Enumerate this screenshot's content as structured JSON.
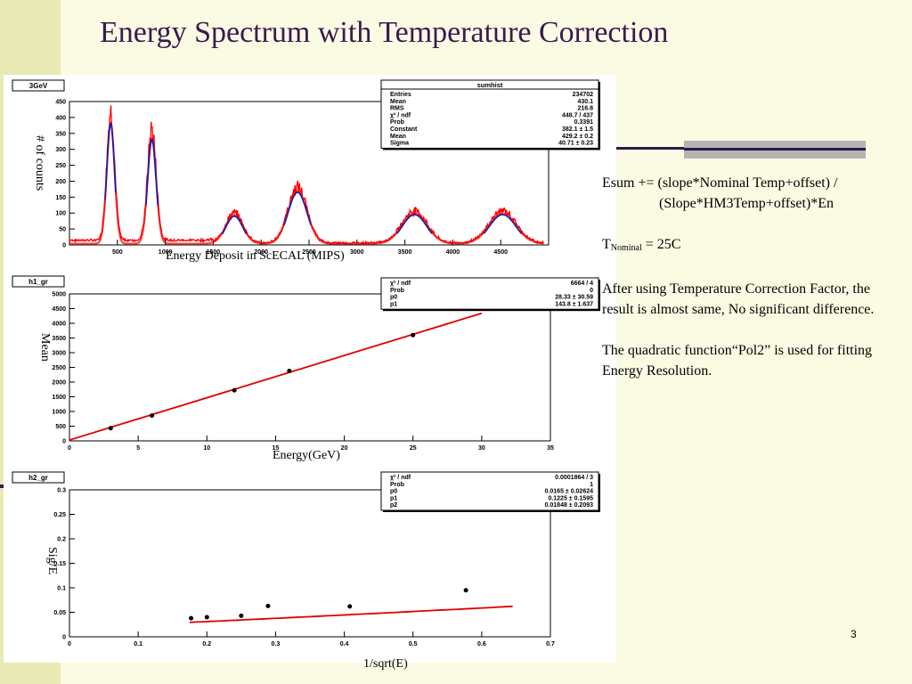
{
  "slide": {
    "title": "Energy Spectrum with Temperature Correction",
    "page_number": "3",
    "colors": {
      "title": "#3a1a4f",
      "fit_line": "#e00000",
      "accent_band": "#e9e9b5"
    }
  },
  "notes": {
    "formula_line1": "Esum += (slope*Nominal Temp+offset) /",
    "formula_line2": "(Slope*HM3Temp+offset)*En",
    "tnominal_prefix": "T",
    "tnominal_sub": "Nominal",
    "tnominal_value": " = 25C",
    "paragraph1": "After using Temperature Correction Factor, the result is almost same, No significant difference.",
    "paragraph2": "The quadratic function“Pol2” is used for fitting Energy Resolution."
  },
  "chart_data": [
    {
      "type": "area",
      "name": "3GeV",
      "ylabel": "# of counts",
      "xlabel": "Energy Deposit in ScECAL (MIPS)",
      "xlim": [
        0,
        5000
      ],
      "ylim": [
        0,
        450
      ],
      "xticks": [
        500,
        1000,
        1500,
        2000,
        2500,
        3000,
        3500,
        4000,
        4500
      ],
      "yticks": [
        0,
        50,
        100,
        150,
        200,
        250,
        300,
        350,
        400,
        450
      ],
      "peaks": [
        {
          "mean": 430,
          "sigma": 41,
          "height": 380
        },
        {
          "mean": 860,
          "sigma": 45,
          "height": 330
        },
        {
          "mean": 1720,
          "sigma": 90,
          "height": 90
        },
        {
          "mean": 2380,
          "sigma": 100,
          "height": 165
        },
        {
          "mean": 3600,
          "sigma": 130,
          "height": 95
        },
        {
          "mean": 4520,
          "sigma": 140,
          "height": 95
        }
      ],
      "stats": {
        "title": "sumhist",
        "rows": [
          [
            "Entries",
            "234702"
          ],
          [
            "Mean",
            "430.1"
          ],
          [
            "RMS",
            "216.8"
          ],
          [
            "χ² / ndf",
            "448.7 / 437"
          ],
          [
            "Prob",
            "0.3391"
          ],
          [
            "Constant",
            "382.1 ± 1.5"
          ],
          [
            "Mean",
            "429.2 ± 0.2"
          ],
          [
            "Sigma",
            "40.71 ± 0.23"
          ]
        ]
      }
    },
    {
      "type": "scatter",
      "name": "h1_gr",
      "ylabel": "Mean",
      "xlabel": "Energy(GeV)",
      "xlim": [
        0,
        35
      ],
      "ylim": [
        0,
        5000
      ],
      "xticks": [
        0,
        5,
        10,
        15,
        20,
        25,
        30,
        35
      ],
      "yticks": [
        0,
        500,
        1000,
        1500,
        2000,
        2500,
        3000,
        3500,
        4000,
        4500,
        5000
      ],
      "x": [
        3,
        6,
        12,
        16,
        25
      ],
      "y": [
        430,
        860,
        1720,
        2380,
        3600
      ],
      "fit": {
        "p0": 28.33,
        "p1": 143.8,
        "x_range": [
          0,
          30
        ]
      },
      "stats": {
        "rows": [
          [
            "χ² / ndf",
            "6664 / 4"
          ],
          [
            "Prob",
            "0"
          ],
          [
            "p0",
            "28.33 ± 30.59"
          ],
          [
            "p1",
            "143.8 ± 1.637"
          ]
        ]
      }
    },
    {
      "type": "scatter",
      "name": "h2_gr",
      "ylabel": "Sig/E",
      "xlabel": "1/sqrt(E)",
      "xlim": [
        0,
        0.7
      ],
      "ylim": [
        0,
        0.3
      ],
      "xticks": [
        0,
        0.1,
        0.2,
        0.3,
        0.4,
        0.5,
        0.6,
        0.7
      ],
      "yticks": [
        0,
        0.05,
        0.1,
        0.15,
        0.2,
        0.25,
        0.3
      ],
      "x": [
        0.177,
        0.2,
        0.25,
        0.289,
        0.408,
        0.577
      ],
      "y": [
        0.038,
        0.04,
        0.043,
        0.063,
        0.062,
        0.095
      ],
      "fit": {
        "p0": 0.0165,
        "p1": 0.1225,
        "p2": 0.01848,
        "x_range": [
          0.175,
          0.65
        ]
      },
      "stats": {
        "rows": [
          [
            "χ² / ndf",
            "0.0001864 / 3"
          ],
          [
            "Prob",
            "1"
          ],
          [
            "p0",
            "0.0165 ± 0.02624"
          ],
          [
            "p1",
            "0.1225 ± 0.1595"
          ],
          [
            "p2",
            "0.01848 ± 0.2093"
          ]
        ]
      }
    }
  ]
}
